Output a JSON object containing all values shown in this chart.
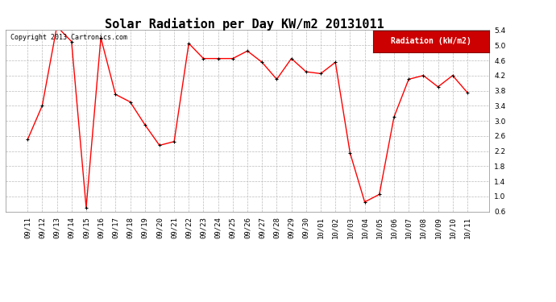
{
  "title": "Solar Radiation per Day KW/m2 20131011",
  "copyright_text": "Copyright 2013 Cartronics.com",
  "legend_label": "Radiation (kW/m2)",
  "dates": [
    "09/11",
    "09/12",
    "09/13",
    "09/14",
    "09/15",
    "09/16",
    "09/17",
    "09/18",
    "09/19",
    "09/20",
    "09/21",
    "09/22",
    "09/23",
    "09/24",
    "09/25",
    "09/26",
    "09/27",
    "09/28",
    "09/29",
    "09/30",
    "10/01",
    "10/02",
    "10/03",
    "10/04",
    "10/05",
    "10/06",
    "10/07",
    "10/08",
    "10/09",
    "10/10",
    "10/11"
  ],
  "values": [
    2.5,
    3.4,
    5.5,
    5.1,
    0.7,
    5.2,
    3.7,
    3.5,
    2.9,
    2.35,
    2.45,
    5.05,
    4.65,
    4.65,
    4.65,
    4.85,
    4.55,
    4.1,
    4.65,
    4.3,
    4.25,
    4.55,
    2.15,
    0.85,
    1.05,
    3.1,
    4.1,
    4.2,
    3.9,
    4.2,
    3.75
  ],
  "ylim": [
    0.6,
    5.4
  ],
  "yticks": [
    0.6,
    1.0,
    1.4,
    1.8,
    2.2,
    2.6,
    3.0,
    3.4,
    3.8,
    4.2,
    4.6,
    5.0,
    5.4
  ],
  "line_color": "#ff0000",
  "marker_color": "#000000",
  "background_color": "#ffffff",
  "plot_bg_color": "#ffffff",
  "grid_color": "#bbbbbb",
  "title_fontsize": 11,
  "tick_fontsize": 6.5,
  "copyright_fontsize": 6,
  "legend_bg_color": "#cc0000",
  "legend_text_color": "#ffffff",
  "legend_fontsize": 7
}
